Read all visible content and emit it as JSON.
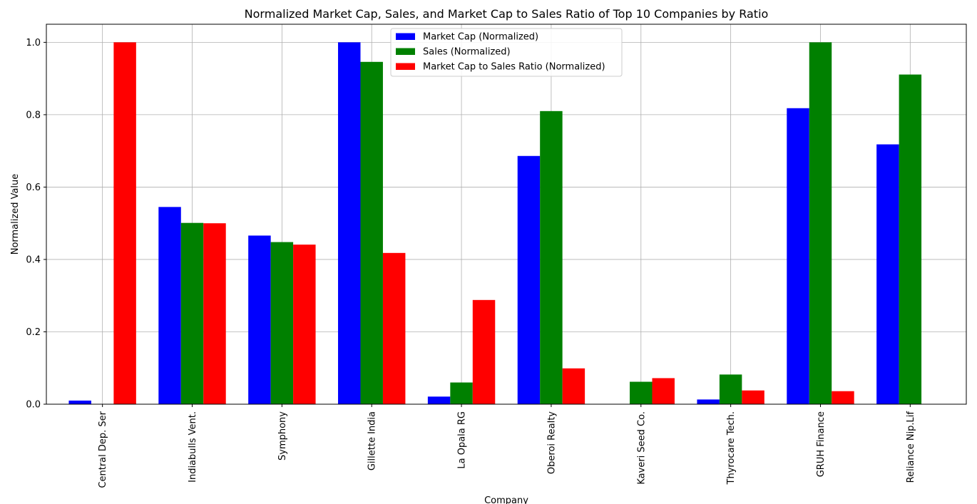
{
  "chart_data": {
    "type": "bar",
    "title": "Normalized Market Cap, Sales, and Market Cap to Sales Ratio of Top 10 Companies by Ratio",
    "xlabel": "Company",
    "ylabel": "Normalized Value",
    "ylim": [
      0,
      1.05
    ],
    "yticks": [
      "0.0",
      "0.2",
      "0.4",
      "0.6",
      "0.8",
      "1.0"
    ],
    "grid": true,
    "legend_position": "top-center",
    "categories": [
      "Central Dep. Ser",
      "Indiabulls Vent.",
      "Symphony",
      "Gillette India",
      "La Opala RG",
      "Oberoi Realty",
      "Kaveri Seed Co.",
      "Thyrocare Tech.",
      "GRUH Finance",
      "Reliance Nip.Lif"
    ],
    "series": [
      {
        "name": "Market Cap (Normalized)",
        "color": "#0000ff",
        "values": [
          0.01,
          0.545,
          0.466,
          1.0,
          0.021,
          0.686,
          0.0,
          0.013,
          0.818,
          0.718
        ]
      },
      {
        "name": "Sales (Normalized)",
        "color": "#008000",
        "values": [
          0.0,
          0.501,
          0.448,
          0.946,
          0.06,
          0.81,
          0.062,
          0.082,
          1.0,
          0.911
        ]
      },
      {
        "name": "Market Cap to Sales Ratio (Normalized)",
        "color": "#ff0000",
        "values": [
          1.0,
          0.5,
          0.441,
          0.418,
          0.288,
          0.099,
          0.072,
          0.038,
          0.036,
          0.0
        ]
      }
    ]
  }
}
